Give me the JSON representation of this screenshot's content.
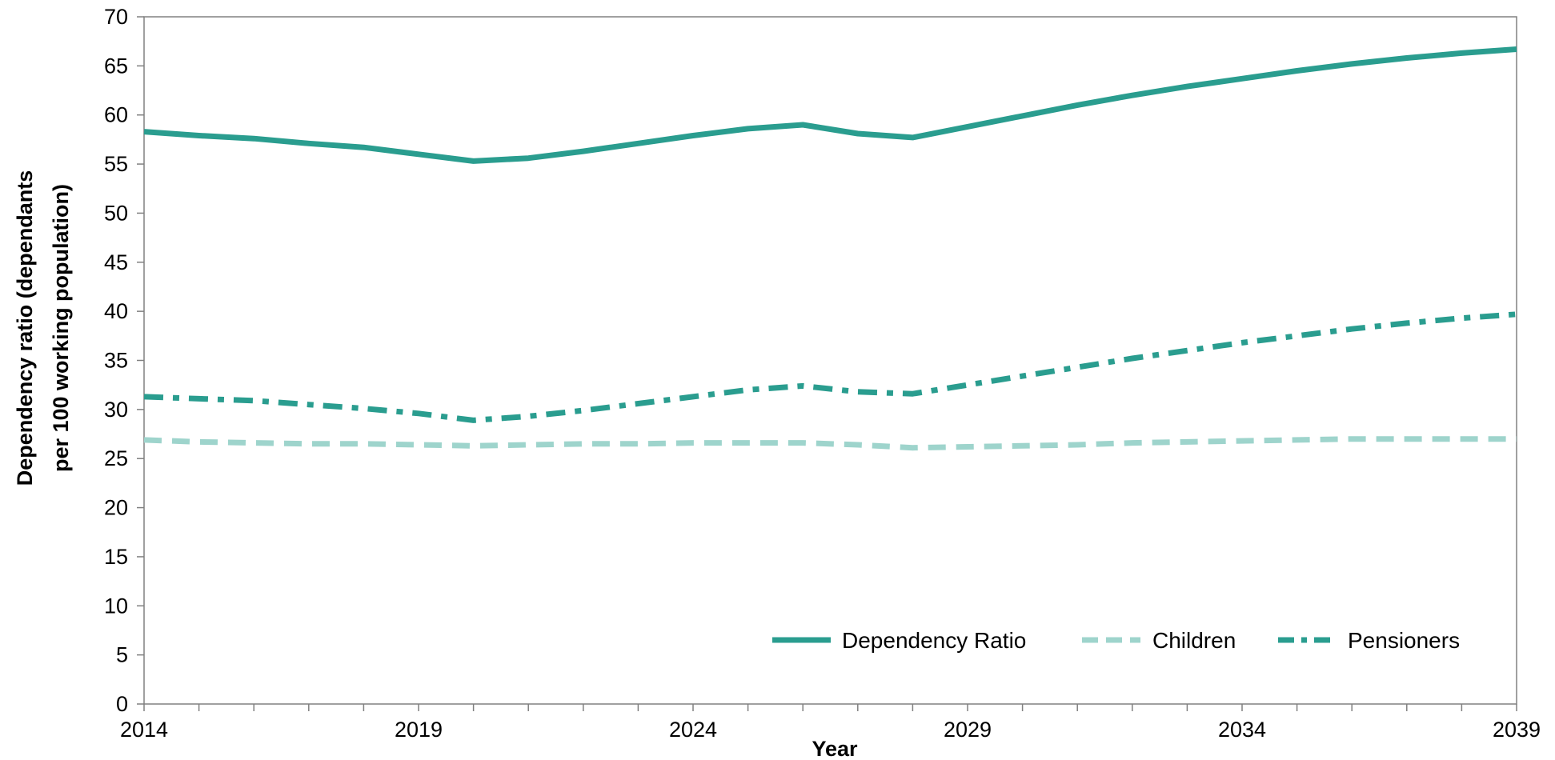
{
  "chart_data": {
    "type": "line",
    "xlabel": "Year",
    "ylabel_line1": "Dependency ratio (dependants",
    "ylabel_line2": "per 100 working population)",
    "xlim": [
      2014,
      2039
    ],
    "ylim": [
      0,
      70
    ],
    "x_tick_labels": [
      2014,
      2019,
      2024,
      2029,
      2034,
      2039
    ],
    "x_minor_ticks": [
      2014,
      2015,
      2016,
      2017,
      2018,
      2019,
      2020,
      2021,
      2022,
      2023,
      2024,
      2025,
      2026,
      2027,
      2028,
      2029,
      2030,
      2031,
      2032,
      2033,
      2034,
      2035,
      2036,
      2037,
      2038,
      2039
    ],
    "y_ticks": [
      0,
      5,
      10,
      15,
      20,
      25,
      30,
      35,
      40,
      45,
      50,
      55,
      60,
      65,
      70
    ],
    "grid": false,
    "legend_position": "bottom-right",
    "x": [
      2014,
      2015,
      2016,
      2017,
      2018,
      2019,
      2020,
      2021,
      2022,
      2023,
      2024,
      2025,
      2026,
      2027,
      2028,
      2029,
      2030,
      2031,
      2032,
      2033,
      2034,
      2035,
      2036,
      2037,
      2038,
      2039
    ],
    "series": [
      {
        "name": "Dependency Ratio",
        "color": "#2a9d8f",
        "style": "solid",
        "values": [
          58.3,
          57.9,
          57.6,
          57.1,
          56.7,
          56.0,
          55.3,
          55.6,
          56.3,
          57.1,
          57.9,
          58.6,
          59.0,
          58.1,
          57.7,
          58.8,
          59.9,
          61.0,
          62.0,
          62.9,
          63.7,
          64.5,
          65.2,
          65.8,
          66.3,
          66.7
        ]
      },
      {
        "name": "Children",
        "color": "#9ed4cc",
        "style": "dash",
        "values": [
          26.9,
          26.7,
          26.6,
          26.5,
          26.5,
          26.4,
          26.3,
          26.4,
          26.5,
          26.5,
          26.6,
          26.6,
          26.6,
          26.4,
          26.1,
          26.2,
          26.3,
          26.4,
          26.6,
          26.7,
          26.8,
          26.9,
          27.0,
          27.0,
          27.0,
          27.0
        ]
      },
      {
        "name": "Pensioners",
        "color": "#2a9d8f",
        "style": "dash-dot",
        "values": [
          31.3,
          31.1,
          30.9,
          30.5,
          30.1,
          29.6,
          28.9,
          29.3,
          29.9,
          30.6,
          31.3,
          32.0,
          32.4,
          31.8,
          31.6,
          32.5,
          33.4,
          34.3,
          35.2,
          36.0,
          36.8,
          37.5,
          38.2,
          38.8,
          39.3,
          39.7
        ]
      }
    ]
  }
}
